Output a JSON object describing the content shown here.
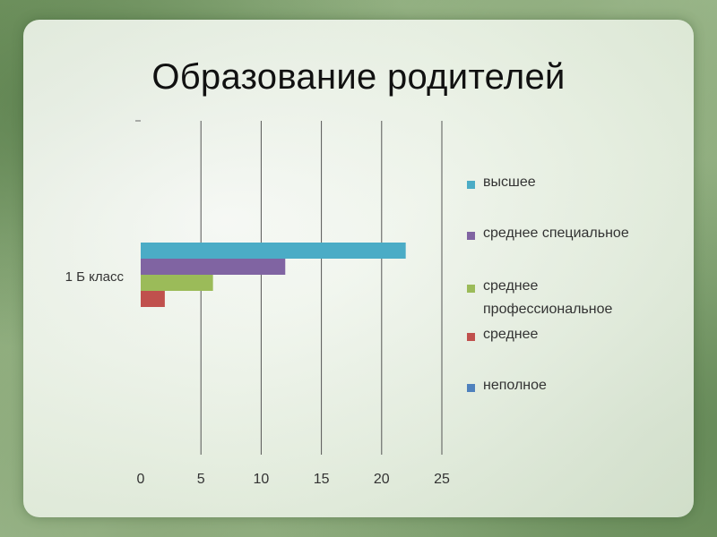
{
  "slide": {
    "title": "Образование родителей"
  },
  "chart_data": {
    "type": "bar",
    "orientation": "horizontal",
    "title": "",
    "xlabel": "",
    "ylabel": "",
    "categories": [
      "1 Б класс"
    ],
    "xlim": [
      0,
      25
    ],
    "xticks": [
      0,
      5,
      10,
      15,
      20,
      25
    ],
    "grid": true,
    "legend_position": "right",
    "series": [
      {
        "name": "высшее",
        "values": [
          22
        ],
        "color": "#4bacc6"
      },
      {
        "name": "среднее специальное",
        "values": [
          12
        ],
        "color": "#8064a2"
      },
      {
        "name": "среднее профессиональное",
        "values": [
          6
        ],
        "color": "#9bbb59"
      },
      {
        "name": "среднее",
        "values": [
          2
        ],
        "color": "#c0504d"
      },
      {
        "name": "неполное",
        "values": [
          0
        ],
        "color": "#4f81bd"
      }
    ]
  }
}
